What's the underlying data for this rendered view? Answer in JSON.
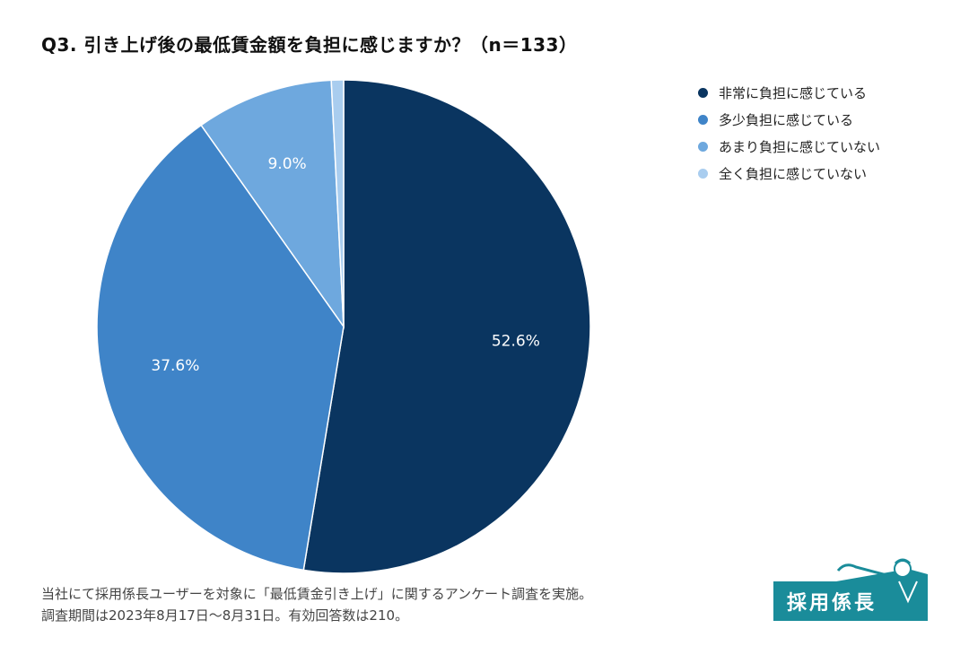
{
  "title": "Q3. 引き上げ後の最低賃金額を負担に感じますか？（n＝133）",
  "chart_data": {
    "type": "pie",
    "title": "Q3. 引き上げ後の最低賃金額を負担に感じますか？（n＝133）",
    "slices": [
      {
        "label": "非常に負担に感じている",
        "value": 52.6,
        "display": "52.6%",
        "color": "#0a3560"
      },
      {
        "label": "多少負担に感じている",
        "value": 37.6,
        "display": "37.6%",
        "color": "#3f84c8"
      },
      {
        "label": "あまり負担に感じていない",
        "value": 9.0,
        "display": "9.0%",
        "color": "#6ea8de"
      },
      {
        "label": "全く負担に感じていない",
        "value": 0.8,
        "display": "",
        "color": "#a9cdef"
      }
    ],
    "legend_position": "right"
  },
  "footnote": {
    "line1": "当社にて採用係長ユーザーを対象に「最低賃金引き上げ」に関するアンケート調査を実施。",
    "line2": "調査期間は2023年8月17日〜8月31日。有効回答数は210。"
  },
  "logo": {
    "text": "採用係長"
  }
}
